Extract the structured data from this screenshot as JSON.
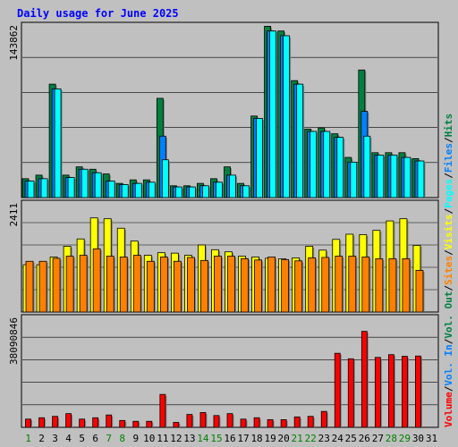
{
  "chart_data": {
    "type": "bar",
    "title": "Daily usage for June 2025",
    "categories": [
      "1",
      "2",
      "3",
      "4",
      "5",
      "6",
      "7",
      "8",
      "9",
      "10",
      "11",
      "12",
      "13",
      "14",
      "15",
      "16",
      "17",
      "18",
      "19",
      "20",
      "21",
      "22",
      "23",
      "24",
      "25",
      "26",
      "27",
      "28",
      "29",
      "30",
      "31"
    ],
    "weekend_days": [
      "1",
      "7",
      "8",
      "14",
      "15",
      "21",
      "22",
      "28",
      "29"
    ],
    "panels": [
      {
        "name": "hits-panel",
        "ymax_label": "143862",
        "ylim": [
          0,
          143862
        ],
        "series": [
          {
            "name": "Hits",
            "color": "#008040",
            "values": [
              16000,
              19000,
              96000,
              19000,
              26000,
              24000,
              20000,
              12000,
              15000,
              15000,
              84000,
              10000,
              10000,
              12000,
              16000,
              26000,
              12000,
              69000,
              145000,
              141000,
              99000,
              58000,
              59000,
              54000,
              34000,
              108000,
              38000,
              38000,
              38000,
              33000,
              null
            ]
          },
          {
            "name": "Files",
            "color": "#0080ff",
            "values": [
              14000,
              16000,
              92000,
              17000,
              24000,
              21000,
              14000,
              11000,
              12000,
              13000,
              52000,
              9000,
              9000,
              10000,
              13000,
              19000,
              10000,
              67000,
              141000,
              137000,
              96000,
              56000,
              56000,
              51000,
              30000,
              73000,
              36000,
              36000,
              34000,
              31000,
              null
            ]
          },
          {
            "name": "Pages",
            "color": "#00ffff",
            "values": [
              14000,
              16000,
              92000,
              17000,
              24000,
              21000,
              14000,
              11000,
              12000,
              13000,
              32000,
              9000,
              9000,
              10000,
              13000,
              19000,
              10000,
              67000,
              141000,
              137000,
              96000,
              56000,
              56000,
              51000,
              30000,
              52000,
              36000,
              36000,
              34000,
              31000,
              null
            ]
          }
        ]
      },
      {
        "name": "visits-panel",
        "ymax_label": "2411",
        "ylim": [
          0,
          2411
        ],
        "series": [
          {
            "name": "Visits",
            "color": "#ffff00",
            "values": [
              1100,
              1100,
              1280,
              1530,
              1700,
              2190,
              2170,
              1950,
              1650,
              1320,
              1380,
              1370,
              1320,
              1560,
              1450,
              1400,
              1300,
              1280,
              1250,
              1240,
              1260,
              1530,
              1440,
              1690,
              1810,
              1800,
              1900,
              2120,
              2170,
              1550,
              null
            ]
          },
          {
            "name": "Sites",
            "color": "#ff8000",
            "values": [
              1180,
              1180,
              1250,
              1300,
              1320,
              1470,
              1300,
              1280,
              1320,
              1180,
              1280,
              1180,
              1270,
              1200,
              1300,
              1300,
              1240,
              1210,
              1280,
              1220,
              1190,
              1260,
              1270,
              1300,
              1300,
              1280,
              1240,
              1240,
              1240,
              970,
              null
            ]
          }
        ]
      },
      {
        "name": "volume-panel",
        "ymax_label": "38090846",
        "ylim": [
          0,
          38090846
        ],
        "series": [
          {
            "name": "Volume",
            "color": "#ff0000",
            "values": [
              3000000,
              3500000,
              4000000,
              5000000,
              3000000,
              3500000,
              4500000,
              2500000,
              2200000,
              2200000,
              12000000,
              1800000,
              4700000,
              5400000,
              4300000,
              5000000,
              3000000,
              3500000,
              2800000,
              2800000,
              3800000,
              4000000,
              5800000,
              27000000,
              25000000,
              35000000,
              25500000,
              26500000,
              25900000,
              26000000,
              null
            ]
          }
        ]
      }
    ],
    "right_legend": [
      {
        "label": "Volume",
        "color": "#ff0000"
      },
      {
        "label": "/",
        "color": "#000000"
      },
      {
        "label": "Vol. In",
        "color": "#0080ff"
      },
      {
        "label": "/",
        "color": "#000000"
      },
      {
        "label": "Vol. Out",
        "color": "#008040"
      },
      {
        "label": "/",
        "color": "#000000"
      },
      {
        "label": "Sites",
        "color": "#ff8000"
      },
      {
        "label": "/",
        "color": "#000000"
      },
      {
        "label": "Visits",
        "color": "#ffff00"
      },
      {
        "label": "/",
        "color": "#000000"
      },
      {
        "label": "Pages",
        "color": "#00ffff"
      },
      {
        "label": "/",
        "color": "#000000"
      },
      {
        "label": "Files",
        "color": "#0080ff"
      },
      {
        "label": "/",
        "color": "#000000"
      },
      {
        "label": "Hits",
        "color": "#008040"
      }
    ],
    "colors": {
      "weekday_tick": "#000080",
      "weekend_tick": "#008000",
      "title": "#0000ff",
      "background": "#c0c0c0"
    }
  }
}
